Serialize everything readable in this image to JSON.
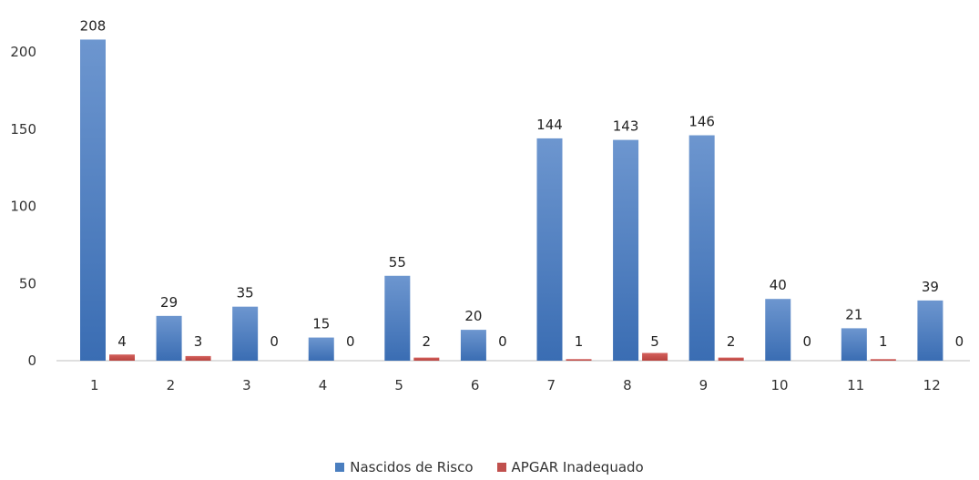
{
  "chart_data": {
    "type": "bar",
    "categories": [
      "1",
      "2",
      "3",
      "4",
      "5",
      "6",
      "7",
      "8",
      "9",
      "10",
      "11",
      "12"
    ],
    "series": [
      {
        "name": "Nascidos de Risco",
        "values": [
          208,
          29,
          35,
          15,
          55,
          20,
          144,
          143,
          146,
          40,
          21,
          39
        ],
        "color": "#4a7ebf"
      },
      {
        "name": "APGAR Inadequado",
        "values": [
          4,
          3,
          0,
          0,
          2,
          0,
          1,
          5,
          2,
          0,
          1,
          0
        ],
        "color": "#c0504d"
      }
    ],
    "yticks": [
      0,
      50,
      100,
      150,
      200
    ],
    "ylim": [
      0,
      230
    ],
    "grid": false,
    "legend": "bottom"
  }
}
